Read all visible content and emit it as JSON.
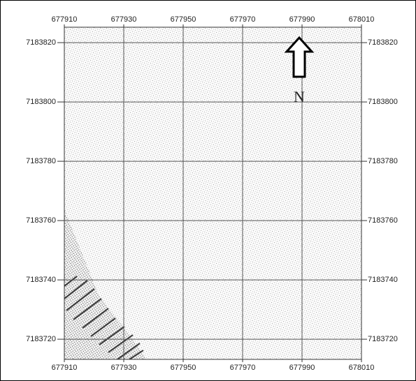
{
  "map": {
    "xlim": [
      677910,
      678010
    ],
    "ylim": [
      7183713.2,
      7183825.2
    ],
    "xticks": [
      677910,
      677930,
      677950,
      677970,
      677990,
      678010
    ],
    "yticks": [
      7183720,
      7183740,
      7183760,
      7183780,
      7183800,
      7183820
    ],
    "grid": true,
    "north_label": "N"
  }
}
